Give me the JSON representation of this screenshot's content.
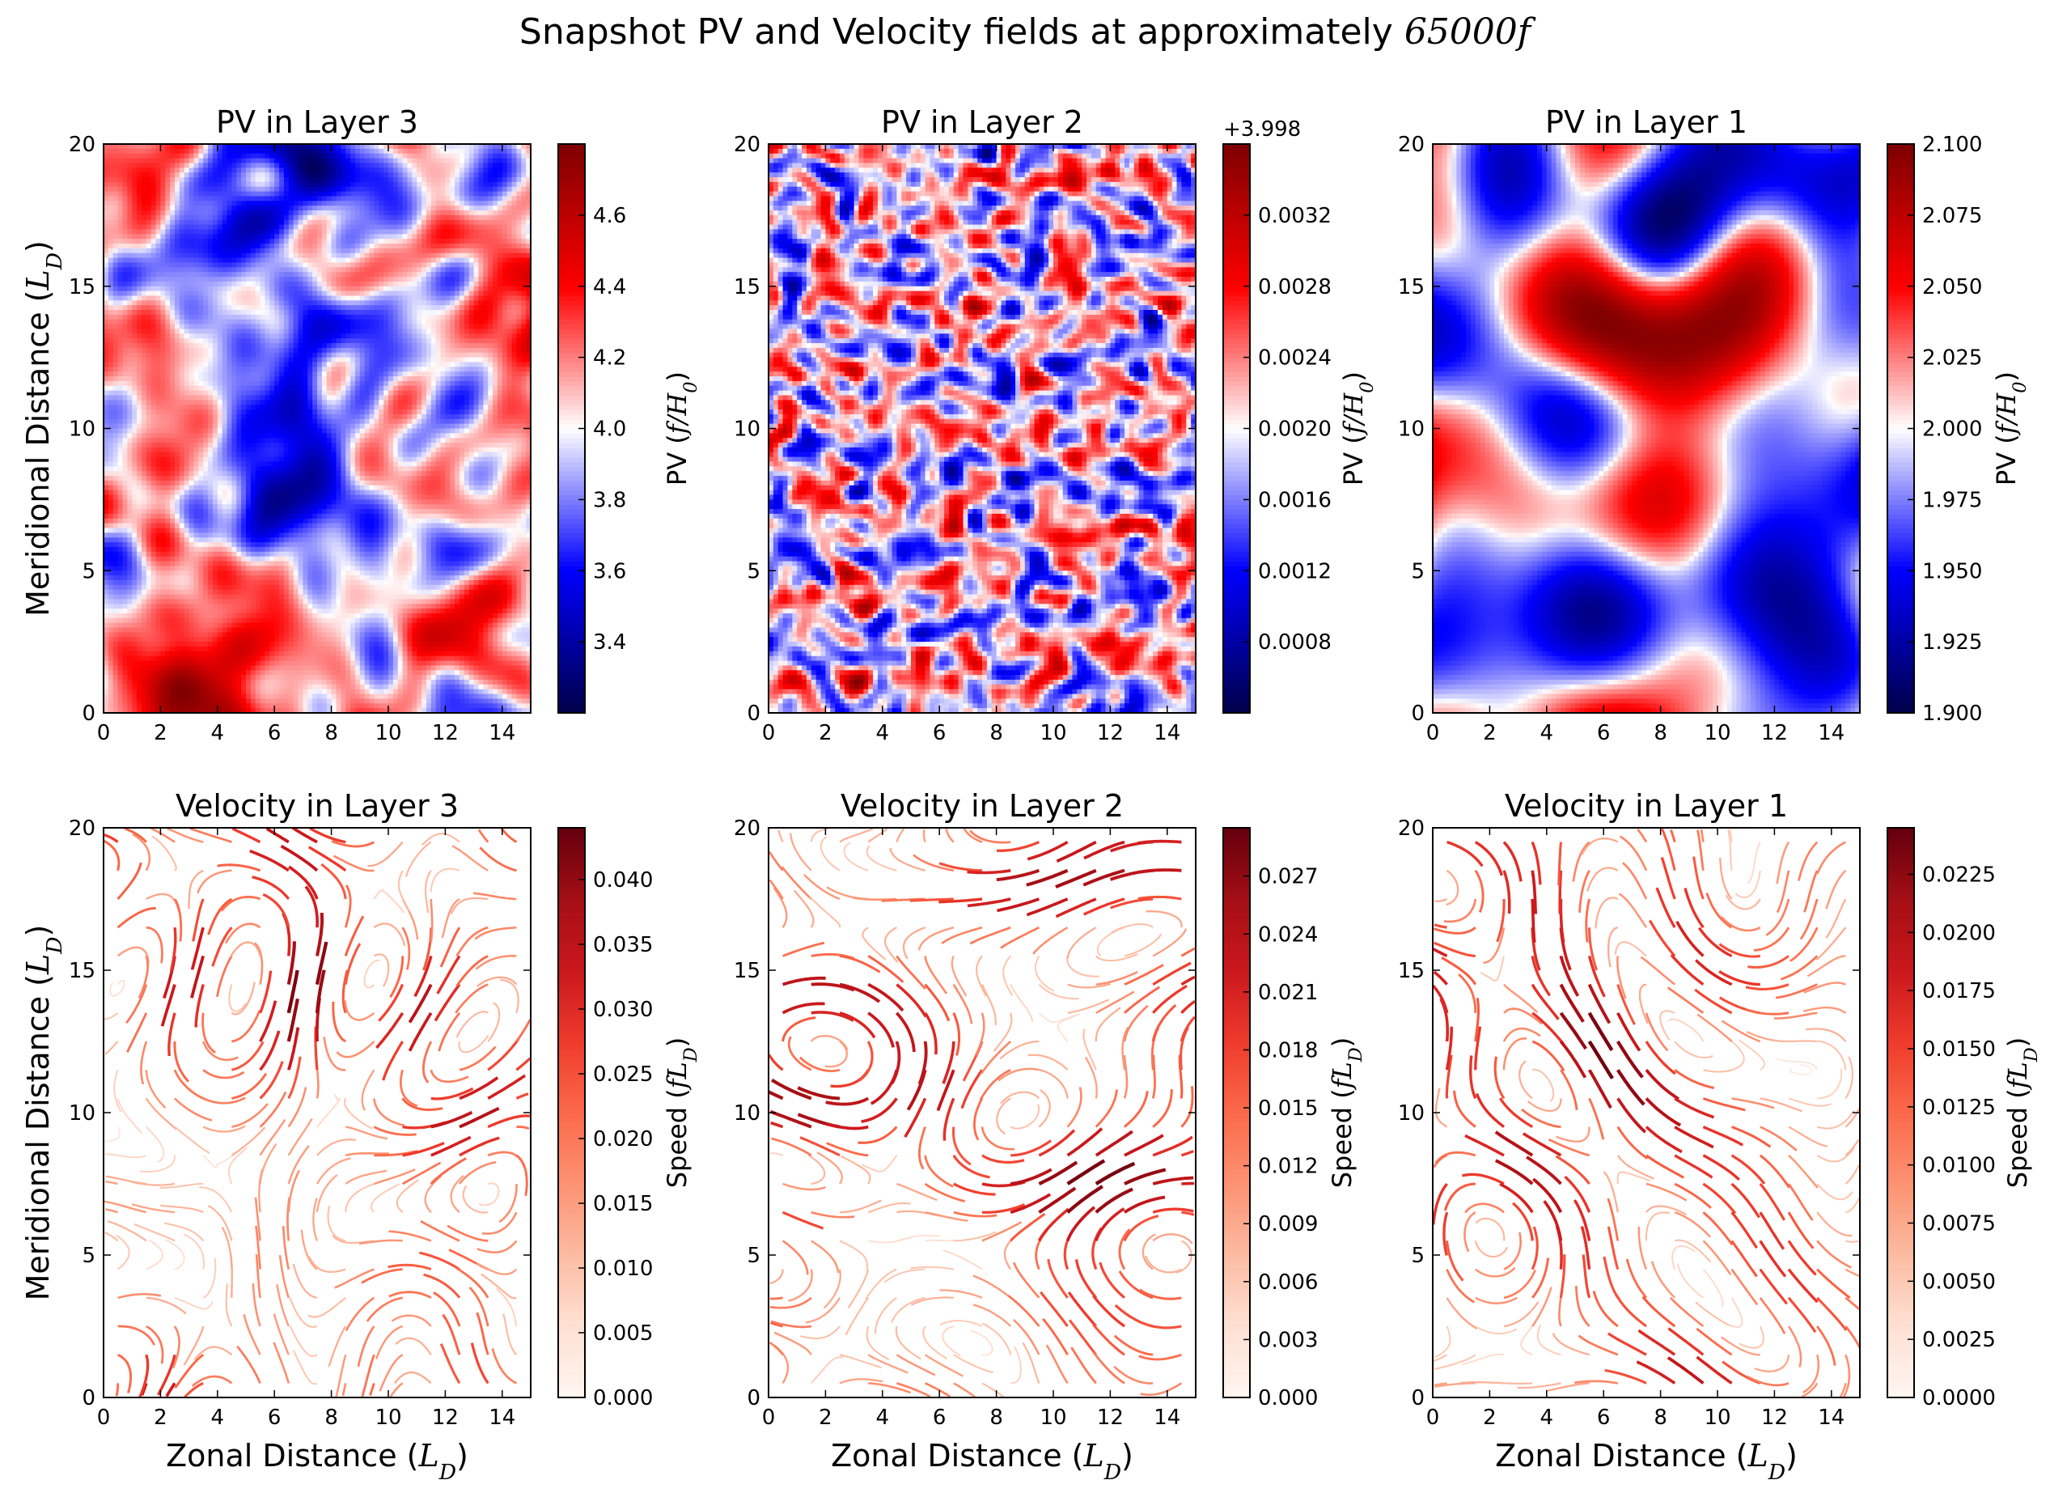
{
  "figure": {
    "title": "Snapshot PV and Velocity fields at approximately",
    "title_math": "65000f"
  },
  "chart_data": [
    {
      "type": "heatmap",
      "title": "PV in Layer 3",
      "xlabel": "",
      "ylabel": "Meridional Distance (L_D)",
      "xlim": [
        0,
        15
      ],
      "ylim": [
        0,
        20
      ],
      "xticks": [
        "0",
        "2",
        "4",
        "6",
        "8",
        "10",
        "12",
        "14"
      ],
      "yticks": [
        "0",
        "5",
        "10",
        "15",
        "20"
      ],
      "colormap": "seismic",
      "colorbar": {
        "label": "PV (f/H_0)",
        "offset": "",
        "range": [
          3.2,
          4.8
        ],
        "ticks": [
          "3.4",
          "3.6",
          "3.8",
          "4.0",
          "4.2",
          "4.4",
          "4.6"
        ]
      },
      "pattern": "turbulent"
    },
    {
      "type": "heatmap",
      "title": "PV in Layer 2",
      "xlabel": "",
      "ylabel": "",
      "xlim": [
        0,
        15
      ],
      "ylim": [
        0,
        20
      ],
      "xticks": [
        "0",
        "2",
        "4",
        "6",
        "8",
        "10",
        "12",
        "14"
      ],
      "yticks": [
        "0",
        "5",
        "10",
        "15",
        "20"
      ],
      "colormap": "seismic",
      "colorbar": {
        "label": "PV (f/H_0)",
        "offset": "+3.998",
        "range": [
          0.0004,
          0.0036
        ],
        "ticks": [
          "0.0008",
          "0.0012",
          "0.0016",
          "0.0020",
          "0.0024",
          "0.0028",
          "0.0032"
        ]
      },
      "pattern": "noisy"
    },
    {
      "type": "heatmap",
      "title": "PV in Layer 1",
      "xlabel": "",
      "ylabel": "",
      "xlim": [
        0,
        15
      ],
      "ylim": [
        0,
        20
      ],
      "xticks": [
        "0",
        "2",
        "4",
        "6",
        "8",
        "10",
        "12",
        "14"
      ],
      "yticks": [
        "0",
        "5",
        "10",
        "15",
        "20"
      ],
      "colormap": "seismic",
      "colorbar": {
        "label": "PV (f/H_0)",
        "offset": "",
        "range": [
          1.9,
          2.1
        ],
        "ticks": [
          "1.900",
          "1.925",
          "1.950",
          "1.975",
          "2.000",
          "2.025",
          "2.050",
          "2.075",
          "2.100"
        ]
      },
      "pattern": "smooth"
    },
    {
      "type": "streamplot",
      "title": "Velocity in Layer 3",
      "xlabel": "Zonal Distance (L_D)",
      "ylabel": "Meridional Distance (L_D)",
      "xlim": [
        0,
        15
      ],
      "ylim": [
        0,
        20
      ],
      "xticks": [
        "0",
        "2",
        "4",
        "6",
        "8",
        "10",
        "12",
        "14"
      ],
      "yticks": [
        "0",
        "5",
        "10",
        "15",
        "20"
      ],
      "colormap": "Reds",
      "colorbar": {
        "label": "Speed (fL_D)",
        "offset": "",
        "range": [
          0,
          0.044
        ],
        "ticks": [
          "0.000",
          "0.005",
          "0.010",
          "0.015",
          "0.020",
          "0.025",
          "0.030",
          "0.035",
          "0.040"
        ]
      }
    },
    {
      "type": "streamplot",
      "title": "Velocity in Layer 2",
      "xlabel": "Zonal Distance (L_D)",
      "ylabel": "",
      "xlim": [
        0,
        15
      ],
      "ylim": [
        0,
        20
      ],
      "xticks": [
        "0",
        "2",
        "4",
        "6",
        "8",
        "10",
        "12",
        "14"
      ],
      "yticks": [
        "0",
        "5",
        "10",
        "15",
        "20"
      ],
      "colormap": "Reds",
      "colorbar": {
        "label": "Speed (fL_D)",
        "offset": "",
        "range": [
          0,
          0.0295
        ],
        "ticks": [
          "0.000",
          "0.003",
          "0.006",
          "0.009",
          "0.012",
          "0.015",
          "0.018",
          "0.021",
          "0.024",
          "0.027"
        ]
      }
    },
    {
      "type": "streamplot",
      "title": "Velocity in Layer 1",
      "xlabel": "Zonal Distance (L_D)",
      "ylabel": "",
      "xlim": [
        0,
        15
      ],
      "ylim": [
        0,
        20
      ],
      "xticks": [
        "0",
        "2",
        "4",
        "6",
        "8",
        "10",
        "12",
        "14"
      ],
      "yticks": [
        "0",
        "5",
        "10",
        "15",
        "20"
      ],
      "colormap": "Reds",
      "colorbar": {
        "label": "Speed (fL_D)",
        "offset": "",
        "range": [
          0,
          0.0245
        ],
        "ticks": [
          "0.0000",
          "0.0025",
          "0.0050",
          "0.0075",
          "0.0100",
          "0.0125",
          "0.0150",
          "0.0175",
          "0.0200",
          "0.0225"
        ]
      }
    }
  ]
}
